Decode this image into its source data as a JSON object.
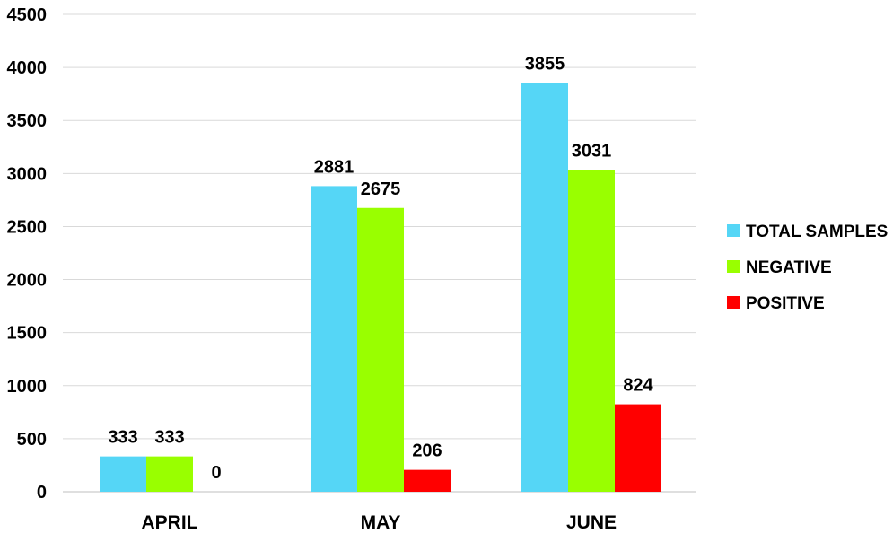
{
  "chart_data": {
    "type": "bar",
    "categories": [
      "APRIL",
      "MAY",
      "JUNE"
    ],
    "series": [
      {
        "name": "TOTAL SAMPLES",
        "values": [
          333,
          2881,
          3855
        ],
        "color": "#55d6f6"
      },
      {
        "name": "NEGATIVE",
        "values": [
          333,
          2675,
          3031
        ],
        "color": "#99ff00"
      },
      {
        "name": "POSITIVE",
        "values": [
          0,
          206,
          824
        ],
        "color": "#ff0000"
      }
    ],
    "data_labels": [
      [
        "333",
        "2881",
        "3855"
      ],
      [
        "333",
        "2675",
        "3031"
      ],
      [
        "0",
        "206",
        "824"
      ]
    ],
    "ylim": [
      0,
      4500
    ],
    "yticks": [
      0,
      500,
      1000,
      1500,
      2000,
      2500,
      3000,
      3500,
      4000,
      4500
    ],
    "ytick_labels": [
      "0",
      "500",
      "1000",
      "1500",
      "2000",
      "2500",
      "3000",
      "3500",
      "4000",
      "4500"
    ],
    "grid": true,
    "legend_position": "right",
    "title": "",
    "xlabel": "",
    "ylabel": ""
  }
}
